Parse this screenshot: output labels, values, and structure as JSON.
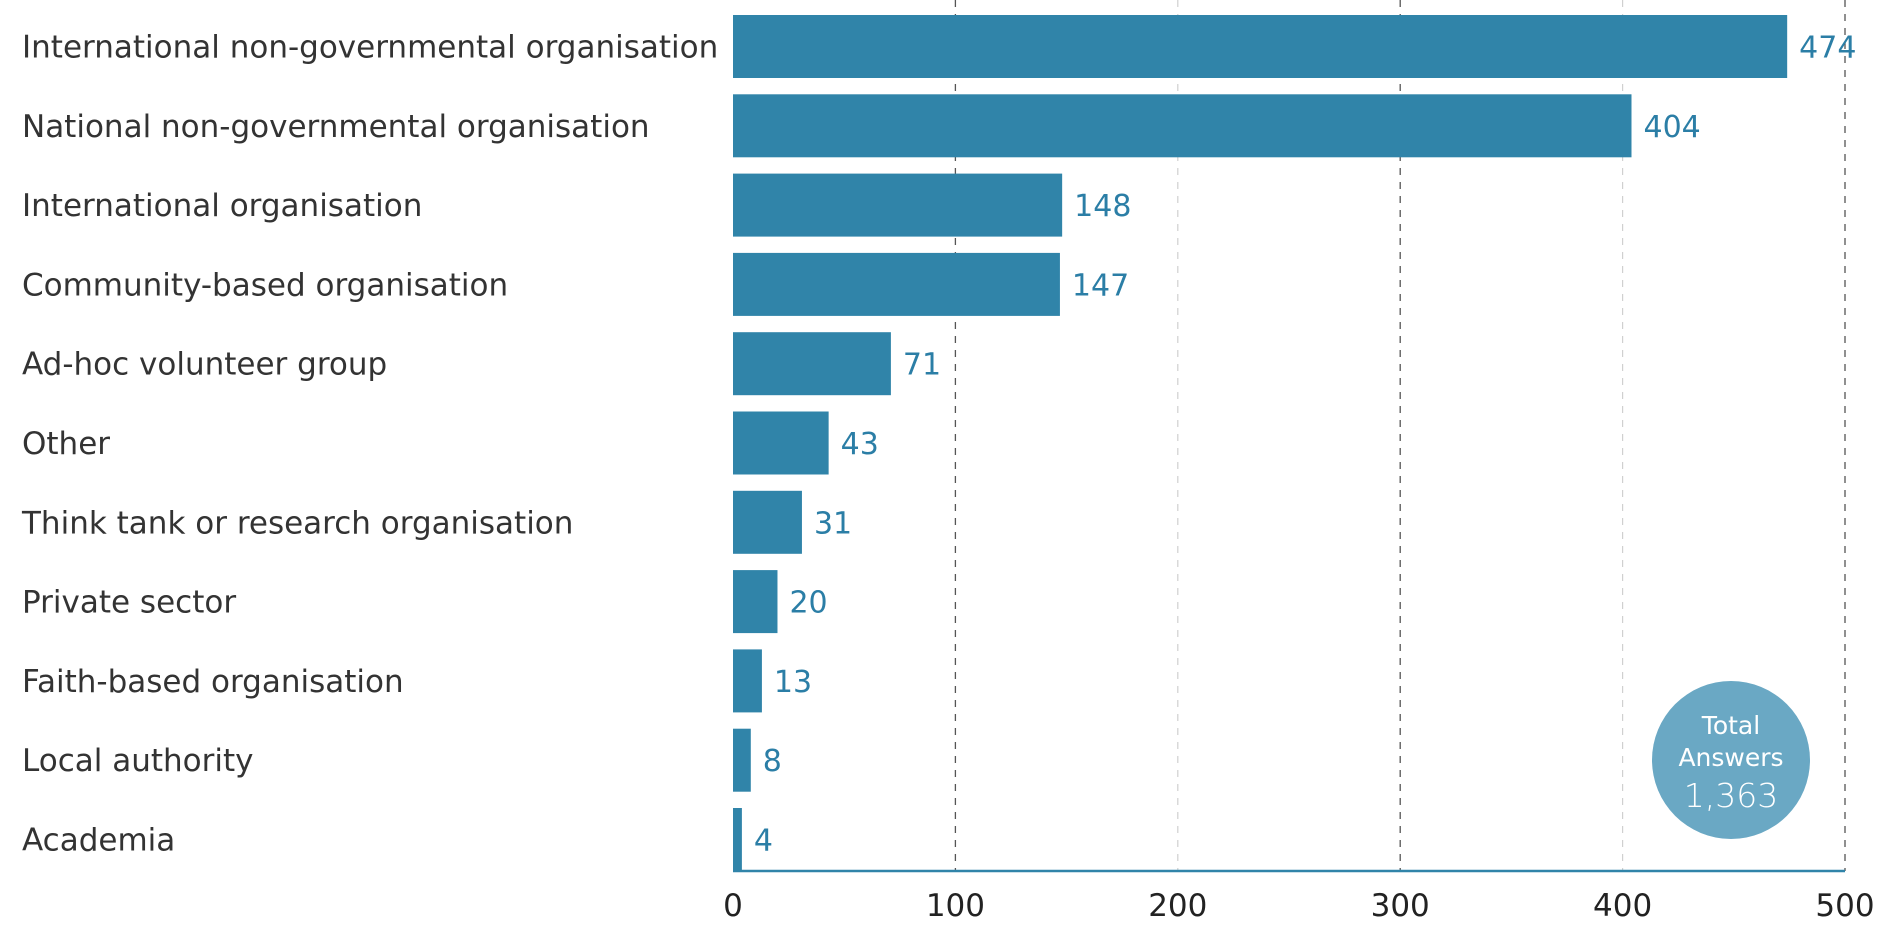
{
  "chart_data": {
    "type": "bar",
    "orientation": "horizontal",
    "categories": [
      "International non-governmental organisation",
      "National non-governmental organisation",
      "International organisation",
      "Community-based organisation",
      "Ad-hoc volunteer group",
      "Other",
      "Think tank or research organisation",
      "Private sector",
      "Faith-based organisation",
      "Local authority",
      "Academia"
    ],
    "values": [
      474,
      404,
      148,
      147,
      71,
      43,
      31,
      20,
      13,
      8,
      4
    ],
    "xlim": [
      0,
      500
    ],
    "xticks": [
      0,
      100,
      200,
      300,
      400,
      500
    ],
    "grid": "vertical dashed",
    "bar_color": "#3084a9",
    "label_color": "#2b7ea6",
    "badge": {
      "line1": "Total",
      "line2": "Answers",
      "value": "1,363",
      "color": "#6aa8c4"
    }
  }
}
